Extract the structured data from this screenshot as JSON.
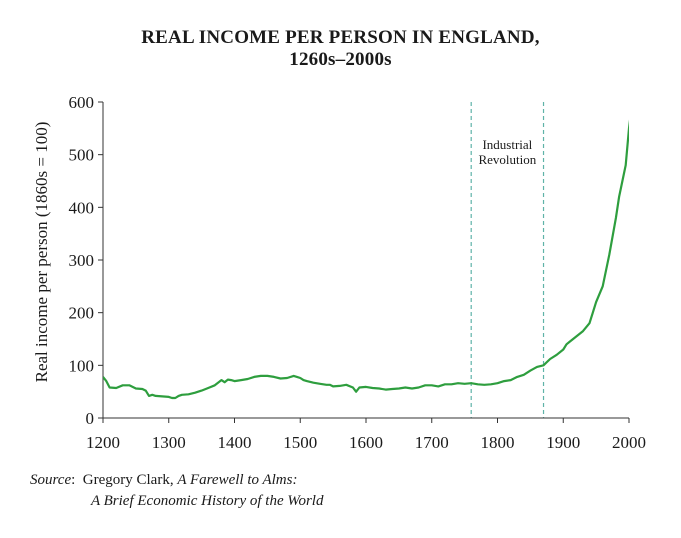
{
  "title": {
    "line1": "REAL INCOME PER PERSON IN ENGLAND,",
    "line2": "1260s–2000s"
  },
  "source": {
    "label": "Source",
    "author": "Gregory Clark, ",
    "book_line1": "A Farewell to Alms:",
    "book_line2": "A Brief Economic History of the World"
  },
  "colors": {
    "line": "#2e9e3e",
    "vline": "#5fb3a8",
    "axis": "#333333"
  },
  "chart_data": {
    "type": "line",
    "ylabel": "Real income per person (1860s = 100)",
    "xlabel": "",
    "xlim": [
      1200,
      2000
    ],
    "ylim": [
      0,
      600
    ],
    "xticks": [
      1200,
      1300,
      1400,
      1500,
      1600,
      1700,
      1800,
      1900,
      2000
    ],
    "yticks": [
      0,
      100,
      200,
      300,
      400,
      500,
      600
    ],
    "annotation": {
      "lines": [
        "Industrial",
        "Revolution"
      ],
      "x_start": 1760,
      "x_end": 1870
    },
    "series": [
      {
        "x": [
          1200,
          1205,
          1210,
          1220,
          1230,
          1240,
          1250,
          1260,
          1265,
          1270,
          1275,
          1280,
          1290,
          1300,
          1305,
          1310,
          1315,
          1320,
          1330,
          1340,
          1350,
          1360,
          1370,
          1380,
          1385,
          1390,
          1395,
          1400,
          1410,
          1420,
          1430,
          1440,
          1450,
          1460,
          1470,
          1480,
          1490,
          1495,
          1500,
          1505,
          1510,
          1520,
          1530,
          1540,
          1545,
          1550,
          1560,
          1570,
          1580,
          1585,
          1590,
          1600,
          1610,
          1620,
          1630,
          1640,
          1650,
          1660,
          1670,
          1680,
          1690,
          1700,
          1710,
          1720,
          1730,
          1740,
          1750,
          1760,
          1770,
          1780,
          1790,
          1800,
          1810,
          1820,
          1830,
          1840,
          1850,
          1860,
          1870,
          1880,
          1890,
          1900,
          1905,
          1910,
          1920,
          1930,
          1940,
          1945,
          1950,
          1960,
          1970,
          1980,
          1985,
          1990,
          1995,
          2000,
          2005
        ],
        "y": [
          78,
          70,
          58,
          57,
          62,
          62,
          56,
          55,
          52,
          42,
          44,
          42,
          41,
          40,
          38,
          38,
          42,
          44,
          45,
          48,
          52,
          57,
          62,
          72,
          68,
          73,
          72,
          70,
          72,
          74,
          78,
          80,
          80,
          78,
          75,
          76,
          80,
          78,
          76,
          72,
          70,
          67,
          65,
          63,
          63,
          60,
          61,
          63,
          58,
          50,
          58,
          59,
          57,
          56,
          54,
          55,
          56,
          58,
          56,
          58,
          62,
          62,
          60,
          64,
          64,
          66,
          65,
          66,
          64,
          63,
          64,
          66,
          70,
          72,
          78,
          82,
          90,
          97,
          100,
          112,
          120,
          130,
          140,
          145,
          155,
          165,
          180,
          200,
          220,
          250,
          310,
          380,
          420,
          450,
          480,
          550,
          600
        ]
      }
    ]
  }
}
